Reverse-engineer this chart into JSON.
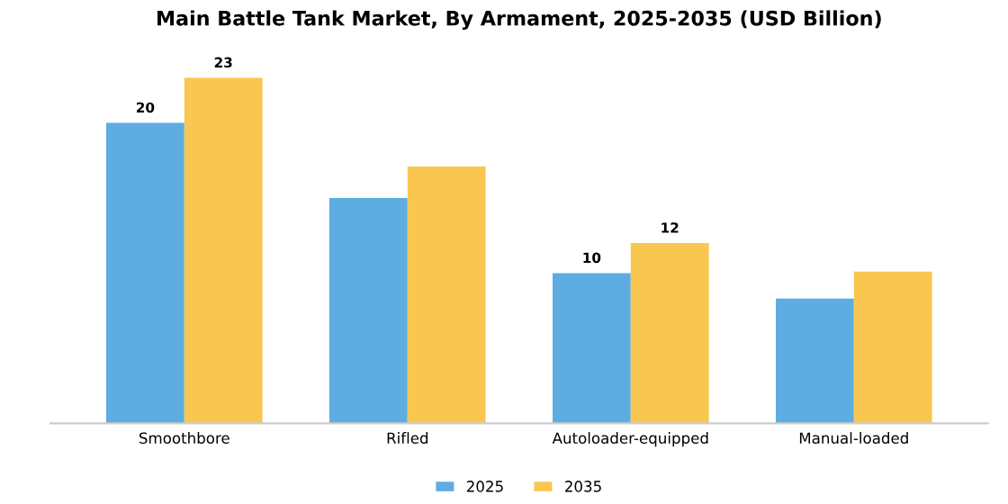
{
  "chart_data": {
    "type": "bar",
    "title": "Main Battle Tank Market, By Armament, 2025-2035 (USD Billion)",
    "categories": [
      "Smoothbore",
      "Rifled",
      "Autoloader-equipped",
      "Manual-loaded"
    ],
    "series": [
      {
        "name": "2025",
        "color": "#5dade2",
        "values": [
          20,
          15,
          10,
          8.3
        ],
        "value_labels": [
          "20",
          null,
          "10",
          null
        ]
      },
      {
        "name": "2035",
        "color": "#f9c74f",
        "values": [
          23,
          17.1,
          12,
          10.1
        ],
        "value_labels": [
          "23",
          null,
          "12",
          null
        ]
      }
    ],
    "tick_labels": "x",
    "legend": "bottom"
  }
}
